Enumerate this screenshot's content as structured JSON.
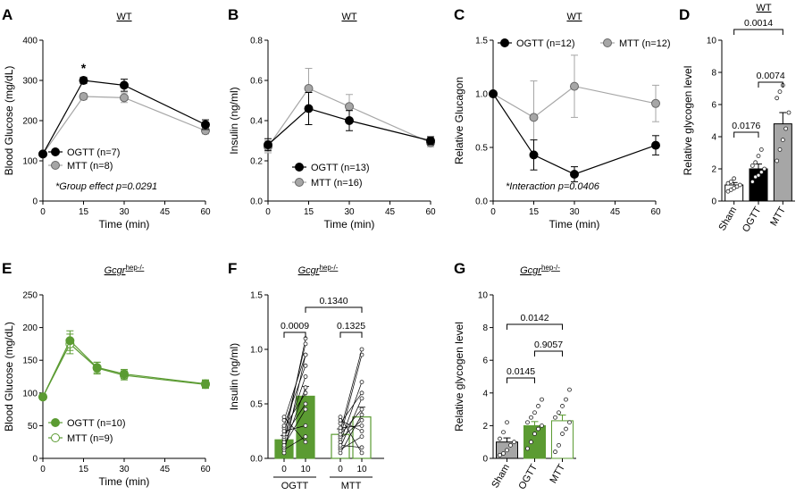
{
  "chart_data": [
    {
      "panel": "A",
      "type": "line",
      "title": "WT",
      "xlabel": "Time (min)",
      "ylabel": "Blood Glucose (mg/dL)",
      "x": [
        0,
        15,
        30,
        60
      ],
      "xticks": [
        "0",
        "15",
        "30",
        "45",
        "60"
      ],
      "xlim": [
        0,
        60
      ],
      "yticks": [
        "0",
        "100",
        "200",
        "300",
        "400"
      ],
      "ylim": [
        0,
        400
      ],
      "series": [
        {
          "name": "OGTT (n=7)",
          "values": [
            117,
            300,
            288,
            190
          ],
          "err": [
            5,
            8,
            15,
            12
          ],
          "color": "#000000"
        },
        {
          "name": "MTT (n=8)",
          "values": [
            117,
            260,
            257,
            175
          ],
          "err": [
            5,
            8,
            12,
            8
          ],
          "color": "#a6a6a6"
        }
      ],
      "annotations": [
        "*",
        "*Group effect p=0.0291"
      ]
    },
    {
      "panel": "B",
      "type": "line",
      "title": "WT",
      "xlabel": "Time (min)",
      "ylabel": "Insulin (ng/ml)",
      "x": [
        0,
        15,
        30,
        60
      ],
      "xticks": [
        "0",
        "15",
        "30",
        "45",
        "60"
      ],
      "xlim": [
        0,
        60
      ],
      "yticks": [
        "0.0",
        "0.2",
        "0.4",
        "0.6",
        "0.8"
      ],
      "ylim": [
        0,
        0.8
      ],
      "series": [
        {
          "name": "OGTT (n=13)",
          "values": [
            0.28,
            0.46,
            0.4,
            0.3
          ],
          "err": [
            0.03,
            0.08,
            0.05,
            0.02
          ],
          "color": "#000000"
        },
        {
          "name": "MTT (n=16)",
          "values": [
            0.27,
            0.56,
            0.47,
            0.29
          ],
          "err": [
            0.03,
            0.1,
            0.06,
            0.02
          ],
          "color": "#a6a6a6"
        }
      ]
    },
    {
      "panel": "C",
      "type": "line",
      "title": "WT",
      "xlabel": "Time (min)",
      "ylabel": "Relative Glucagon",
      "x": [
        0,
        15,
        30,
        60
      ],
      "xticks": [
        "0",
        "15",
        "30",
        "45",
        "60"
      ],
      "xlim": [
        0,
        60
      ],
      "yticks": [
        "0.0",
        "0.5",
        "1.0",
        "1.5"
      ],
      "ylim": [
        0,
        1.5
      ],
      "series": [
        {
          "name": "OGTT (n=12)",
          "values": [
            1.0,
            0.43,
            0.25,
            0.52
          ],
          "err": [
            0.0,
            0.14,
            0.07,
            0.09
          ],
          "color": "#000000"
        },
        {
          "name": "MTT (n=12)",
          "values": [
            1.0,
            0.78,
            1.07,
            0.91
          ],
          "err": [
            0.0,
            0.34,
            0.29,
            0.17
          ],
          "color": "#a6a6a6"
        }
      ],
      "annotations": [
        "*Interaction p=0.0406"
      ]
    },
    {
      "panel": "D",
      "type": "bar",
      "title": "WT",
      "ylabel": "Relative glycogen level",
      "categories": [
        "Sham",
        "OGTT",
        "MTT"
      ],
      "values": [
        1.0,
        2.0,
        4.8
      ],
      "err": [
        0.15,
        0.3,
        0.7
      ],
      "colors": [
        "#ffffff",
        "#000000",
        "#a6a6a6"
      ],
      "yticks": [
        "0",
        "2",
        "4",
        "6",
        "8",
        "10"
      ],
      "ylim": [
        0,
        10
      ],
      "points": [
        [
          0.6,
          0.7,
          0.8,
          0.9,
          1.0,
          1.1,
          1.2,
          1.4
        ],
        [
          1.2,
          1.5,
          1.6,
          1.8,
          2.0,
          2.2,
          2.4,
          2.8,
          3.2
        ],
        [
          2.5,
          3.2,
          3.8,
          4.5,
          5.5,
          6.4,
          6.8,
          7.2
        ]
      ],
      "comparisons": [
        {
          "pair": [
            0,
            1
          ],
          "label": "0.0176"
        },
        {
          "pair": [
            1,
            2
          ],
          "label": "0.0074"
        },
        {
          "pair": [
            0,
            2
          ],
          "label": "0.0014"
        }
      ]
    },
    {
      "panel": "E",
      "type": "line",
      "title": "Gcgr",
      "title_sup": "hep-/-",
      "xlabel": "Time (min)",
      "ylabel": "Blood Glucose (mg/dL)",
      "x": [
        0,
        10,
        20,
        30,
        60
      ],
      "xticks": [
        "0",
        "15",
        "30",
        "45",
        "60"
      ],
      "xlim": [
        0,
        60
      ],
      "yticks": [
        "0",
        "50",
        "100",
        "150",
        "200",
        "250"
      ],
      "ylim": [
        0,
        250
      ],
      "series": [
        {
          "name": "OGTT (n=10)",
          "values": [
            94,
            180,
            139,
            129,
            114
          ],
          "err": [
            4,
            15,
            8,
            7,
            6
          ],
          "color": "#5b9b32",
          "filled": true
        },
        {
          "name": "MTT (n=9)",
          "values": [
            94,
            175,
            138,
            127,
            113
          ],
          "err": [
            4,
            15,
            9,
            7,
            6
          ],
          "color": "#5b9b32",
          "filled": false
        }
      ]
    },
    {
      "panel": "F",
      "type": "bar",
      "title": "Gcgr",
      "title_sup": "hep-/-",
      "ylabel": "Insulin (ng/ml)",
      "categories": [
        "0",
        "10",
        "0",
        "10"
      ],
      "groups": [
        "OGTT",
        "MTT"
      ],
      "values": [
        0.17,
        0.57,
        0.22,
        0.38
      ],
      "err": [
        0.04,
        0.09,
        0.05,
        0.09
      ],
      "yticks": [
        "0.0",
        "0.5",
        "1.0",
        "1.5"
      ],
      "ylim": [
        0,
        1.5
      ],
      "paired": [
        [
          [
            0.05,
            0.95
          ],
          [
            0.08,
            0.2
          ],
          [
            0.1,
            0.65
          ],
          [
            0.12,
            0.45
          ],
          [
            0.15,
            1.1
          ],
          [
            0.18,
            0.75
          ],
          [
            0.2,
            0.5
          ],
          [
            0.22,
            1.05
          ],
          [
            0.25,
            0.3
          ],
          [
            0.28,
            0.6
          ],
          [
            0.3,
            0.85
          ],
          [
            0.35,
            0.95
          ],
          [
            0.38,
            0.15
          ]
        ],
        [
          [
            0.05,
            0.4
          ],
          [
            0.08,
            0.2
          ],
          [
            0.1,
            0.55
          ],
          [
            0.12,
            0.1
          ],
          [
            0.15,
            0.7
          ],
          [
            0.18,
            0.35
          ],
          [
            0.2,
            0.95
          ],
          [
            0.22,
            0.45
          ],
          [
            0.25,
            1.0
          ],
          [
            0.28,
            0.3
          ],
          [
            0.32,
            0.6
          ],
          [
            0.35,
            0.25
          ],
          [
            0.38,
            0.05
          ]
        ]
      ],
      "comparisons": [
        {
          "pair": [
            0,
            1
          ],
          "label": "0.0009"
        },
        {
          "pair": [
            2,
            3
          ],
          "label": "0.1325"
        },
        {
          "pair": [
            1,
            3
          ],
          "label": "0.1340"
        }
      ]
    },
    {
      "panel": "G",
      "type": "bar",
      "title": "Gcgr",
      "title_sup": "hep-/-",
      "ylabel": "Relative glycogen level",
      "categories": [
        "Sham",
        "OGTT",
        "MTT"
      ],
      "values": [
        1.0,
        2.0,
        2.3
      ],
      "err": [
        0.25,
        0.25,
        0.35
      ],
      "colors": [
        "#a6a6a6",
        "#5b9b32",
        "#ffffff"
      ],
      "yticks": [
        "0",
        "2",
        "4",
        "6",
        "8",
        "10"
      ],
      "ylim": [
        0,
        10
      ],
      "points": [
        [
          0.2,
          0.3,
          0.5,
          0.8,
          1.0,
          1.2,
          1.6,
          2.2
        ],
        [
          0.6,
          1.0,
          1.5,
          1.8,
          2.0,
          2.2,
          2.5,
          2.8,
          3.2,
          3.6
        ],
        [
          0.4,
          0.8,
          1.5,
          1.8,
          2.2,
          2.5,
          2.8,
          3.2,
          3.6,
          4.2
        ]
      ],
      "comparisons": [
        {
          "pair": [
            0,
            1
          ],
          "label": "0.0145"
        },
        {
          "pair": [
            1,
            2
          ],
          "label": "0.9057"
        },
        {
          "pair": [
            0,
            2
          ],
          "label": "0.0142"
        }
      ]
    }
  ]
}
